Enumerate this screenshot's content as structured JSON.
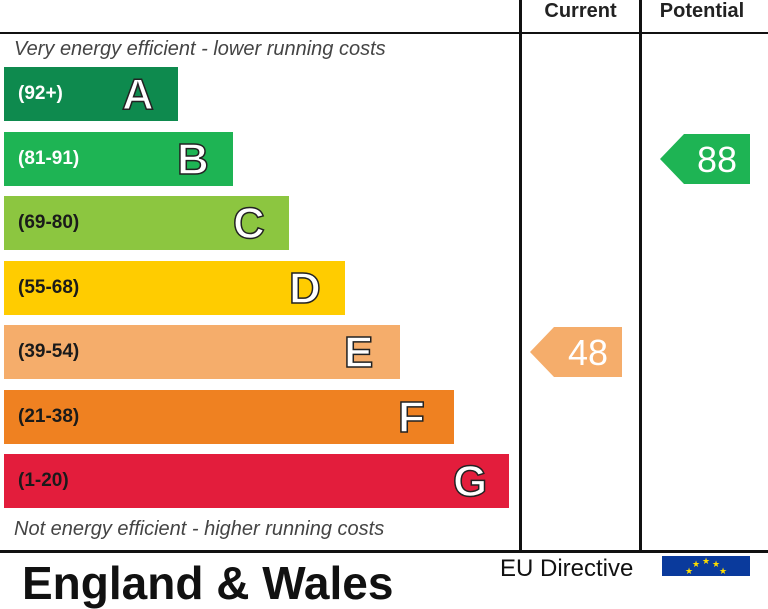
{
  "columns": {
    "current": "Current",
    "potential": "Potential"
  },
  "notes": {
    "top": "Very energy efficient - lower running costs",
    "bottom": "Not energy efficient - higher running costs"
  },
  "footer": {
    "title": "England & Wales",
    "directive": "EU Directive"
  },
  "chart_data": {
    "type": "bar",
    "bands": [
      {
        "letter": "A",
        "range": "(92+)",
        "color": "#0e8a4e",
        "range_color": "#ffffff"
      },
      {
        "letter": "B",
        "range": "(81-91)",
        "color": "#1eb454",
        "range_color": "#ffffff"
      },
      {
        "letter": "C",
        "range": "(69-80)",
        "color": "#8cc640",
        "range_color": "#1a1a1a"
      },
      {
        "letter": "D",
        "range": "(55-68)",
        "color": "#ffcc00",
        "range_color": "#1a1a1a"
      },
      {
        "letter": "E",
        "range": "(39-54)",
        "color": "#f5ad6b",
        "range_color": "#1a1a1a"
      },
      {
        "letter": "F",
        "range": "(21-38)",
        "color": "#ef8121",
        "range_color": "#1a1a1a"
      },
      {
        "letter": "G",
        "range": "(1-20)",
        "color": "#e31d3c",
        "range_color": "#1a1a1a"
      }
    ],
    "current": {
      "value": 48,
      "band": "E",
      "color": "#f5ad6b"
    },
    "potential": {
      "value": 88,
      "band": "B",
      "color": "#1eb454"
    }
  }
}
